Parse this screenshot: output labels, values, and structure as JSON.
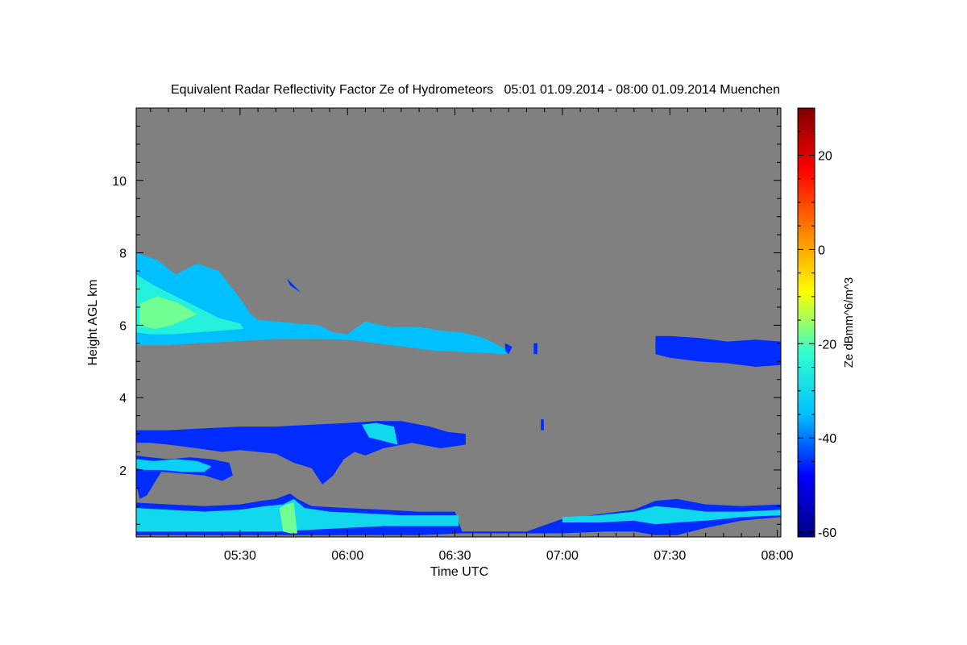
{
  "chart_data": {
    "type": "heatmap",
    "title": "Equivalent Radar Reflectivity Factor Ze of Hydrometeors   05:01 01.09.2014 - 08:00 01.09.2014 Muenchen",
    "xlabel": "Time UTC",
    "ylabel": "Height AGL km",
    "x_ticks": [
      {
        "label": "05:30",
        "min": 330
      },
      {
        "label": "06:00",
        "min": 360
      },
      {
        "label": "06:30",
        "min": 390
      },
      {
        "label": "07:00",
        "min": 420
      },
      {
        "label": "07:30",
        "min": 450
      },
      {
        "label": "08:00",
        "min": 480
      }
    ],
    "xlim_min": [
      301,
      481
    ],
    "x_minor_step_min": 5,
    "y_ticks": [
      {
        "label": "2",
        "v": 2
      },
      {
        "label": "4",
        "v": 4
      },
      {
        "label": "6",
        "v": 6
      },
      {
        "label": "8",
        "v": 8
      },
      {
        "label": "10",
        "v": 10
      }
    ],
    "ylim": [
      0.15,
      12.0
    ],
    "y_minor_step": 0.5,
    "background_color": "#808080",
    "colorbar": {
      "label": "Ze dBmm^6/m^3",
      "range": [
        -61,
        30
      ],
      "ticks": [
        {
          "label": "-60",
          "v": -60
        },
        {
          "label": "-40",
          "v": -40
        },
        {
          "label": "-20",
          "v": -20
        },
        {
          "label": "0",
          "v": 0
        },
        {
          "label": "20",
          "v": 20
        }
      ],
      "minor_step": 5,
      "colormap": [
        "#000080",
        "#0000ff",
        "#00c0ff",
        "#30ffd0",
        "#ffff00",
        "#ff8000",
        "#ff0000",
        "#800000"
      ]
    },
    "echo_regions": [
      {
        "t": [
          301,
          307,
          312,
          318,
          324,
          328,
          331,
          333,
          335,
          340,
          346,
          352,
          356,
          360,
          362,
          365,
          372,
          380,
          386,
          392,
          398,
          402,
          405,
          404,
          394,
          384,
          376,
          368,
          360,
          352,
          340,
          328,
          318,
          310,
          305,
          301
        ],
        "h": [
          8.0,
          7.8,
          7.4,
          7.7,
          7.5,
          7.0,
          6.6,
          6.3,
          6.15,
          6.1,
          6.05,
          6.0,
          5.8,
          5.75,
          5.9,
          6.1,
          5.95,
          5.95,
          5.85,
          5.8,
          5.65,
          5.45,
          5.3,
          5.2,
          5.25,
          5.3,
          5.4,
          5.5,
          5.6,
          5.62,
          5.62,
          5.55,
          5.5,
          5.45,
          5.45,
          5.45
        ],
        "ze": -35
      },
      {
        "t": [
          301,
          306,
          312,
          318,
          324,
          330,
          331,
          325,
          318,
          311,
          305,
          301
        ],
        "h": [
          7.4,
          7.1,
          6.8,
          6.5,
          6.2,
          6.05,
          5.9,
          5.85,
          5.8,
          5.75,
          5.75,
          5.8
        ],
        "ze": -25
      },
      {
        "t": [
          302,
          307,
          313,
          318,
          311,
          306,
          302
        ],
        "h": [
          6.6,
          6.8,
          6.6,
          6.3,
          6.0,
          5.9,
          6.0
        ],
        "ze": -18
      },
      {
        "t": [
          343,
          346,
          347,
          344
        ],
        "h": [
          7.3,
          7.0,
          6.9,
          7.1
        ],
        "ze": -45
      },
      {
        "t": [
          404,
          406,
          405,
          404
        ],
        "h": [
          5.5,
          5.4,
          5.2,
          5.3
        ],
        "ze": -45
      },
      {
        "t": [
          412,
          413,
          413,
          412
        ],
        "h": [
          5.5,
          5.5,
          5.2,
          5.2
        ],
        "ze": -45
      },
      {
        "t": [
          414,
          414.8,
          414.8,
          414
        ],
        "h": [
          3.4,
          3.4,
          3.1,
          3.1
        ],
        "ze": -45
      },
      {
        "t": [
          446,
          450,
          458,
          466,
          474,
          481,
          481,
          474,
          466,
          458,
          450,
          446
        ],
        "h": [
          5.7,
          5.7,
          5.65,
          5.55,
          5.6,
          5.55,
          4.9,
          4.85,
          4.95,
          5.0,
          5.1,
          5.2
        ],
        "ze": -45
      },
      {
        "t": [
          301,
          310,
          320,
          330,
          340,
          350,
          360,
          368,
          375,
          383,
          388,
          393,
          393,
          386,
          378,
          370,
          365,
          362,
          359,
          356,
          353,
          350,
          345,
          340,
          335,
          330,
          325,
          318,
          310,
          305,
          301
        ],
        "h": [
          3.1,
          3.1,
          3.15,
          3.2,
          3.2,
          3.25,
          3.3,
          3.35,
          3.35,
          3.2,
          3.05,
          3.0,
          2.7,
          2.6,
          2.75,
          2.6,
          2.4,
          2.5,
          2.3,
          1.85,
          1.6,
          2.05,
          2.2,
          2.45,
          2.5,
          2.55,
          2.5,
          2.6,
          2.7,
          2.75,
          2.75
        ],
        "ze": -45
      },
      {
        "t": [
          364,
          368,
          373,
          374,
          370,
          366
        ],
        "h": [
          3.25,
          3.3,
          3.2,
          2.7,
          2.8,
          2.9
        ],
        "ze": -30
      },
      {
        "t": [
          301,
          305,
          310,
          316,
          322,
          327,
          328,
          325,
          320,
          314,
          308,
          304,
          302,
          301
        ],
        "h": [
          2.4,
          2.35,
          2.3,
          2.35,
          2.3,
          2.2,
          1.85,
          1.7,
          1.85,
          1.9,
          1.95,
          1.3,
          1.2,
          1.6
        ],
        "ze": -45
      },
      {
        "t": [
          301,
          306,
          312,
          318,
          322,
          320,
          314,
          308,
          303,
          301
        ],
        "h": [
          2.3,
          2.25,
          2.3,
          2.25,
          2.1,
          1.95,
          1.95,
          2.0,
          2.0,
          2.05
        ],
        "ze": -32
      },
      {
        "t": [
          301,
          310,
          320,
          330,
          336,
          340,
          344,
          346,
          350,
          360,
          370,
          380,
          390,
          392,
          400,
          410,
          420,
          432,
          440,
          446,
          452,
          460,
          470,
          481,
          481,
          470,
          460,
          452,
          446,
          440,
          432,
          420,
          410,
          400,
          392,
          380,
          360,
          340,
          320,
          301
        ],
        "h": [
          1.1,
          1.05,
          1.0,
          1.05,
          1.15,
          1.2,
          1.35,
          1.2,
          1.0,
          0.95,
          0.9,
          0.85,
          0.85,
          0.3,
          0.3,
          0.3,
          0.65,
          0.8,
          0.9,
          1.15,
          1.2,
          1.05,
          1.0,
          1.05,
          0.7,
          0.6,
          0.4,
          0.2,
          0.2,
          0.3,
          0.3,
          0.25,
          0.25,
          0.25,
          0.25,
          0.2,
          0.2,
          0.2,
          0.2,
          0.2
        ],
        "ze": -45
      },
      {
        "t": [
          301,
          310,
          320,
          330,
          337,
          342,
          345,
          348,
          355,
          365,
          375,
          385,
          391,
          391,
          380,
          370,
          360,
          350,
          340,
          330,
          320,
          310,
          301
        ],
        "h": [
          0.95,
          0.9,
          0.85,
          0.9,
          1.0,
          1.05,
          1.2,
          0.95,
          0.85,
          0.8,
          0.75,
          0.75,
          0.75,
          0.45,
          0.45,
          0.45,
          0.4,
          0.35,
          0.3,
          0.3,
          0.3,
          0.3,
          0.3
        ],
        "ze": -30
      },
      {
        "t": [
          341,
          343,
          345,
          346,
          344,
          342
        ],
        "h": [
          0.95,
          1.05,
          1.1,
          0.25,
          0.25,
          0.3
        ],
        "ze": -18
      },
      {
        "t": [
          420,
          430,
          440,
          446,
          452,
          460,
          470,
          481,
          481,
          470,
          460,
          452,
          446,
          440,
          430,
          420
        ],
        "h": [
          0.7,
          0.75,
          0.85,
          1.0,
          0.95,
          0.85,
          0.85,
          0.9,
          0.75,
          0.7,
          0.6,
          0.55,
          0.5,
          0.6,
          0.55,
          0.55
        ],
        "ze": -30
      }
    ]
  }
}
